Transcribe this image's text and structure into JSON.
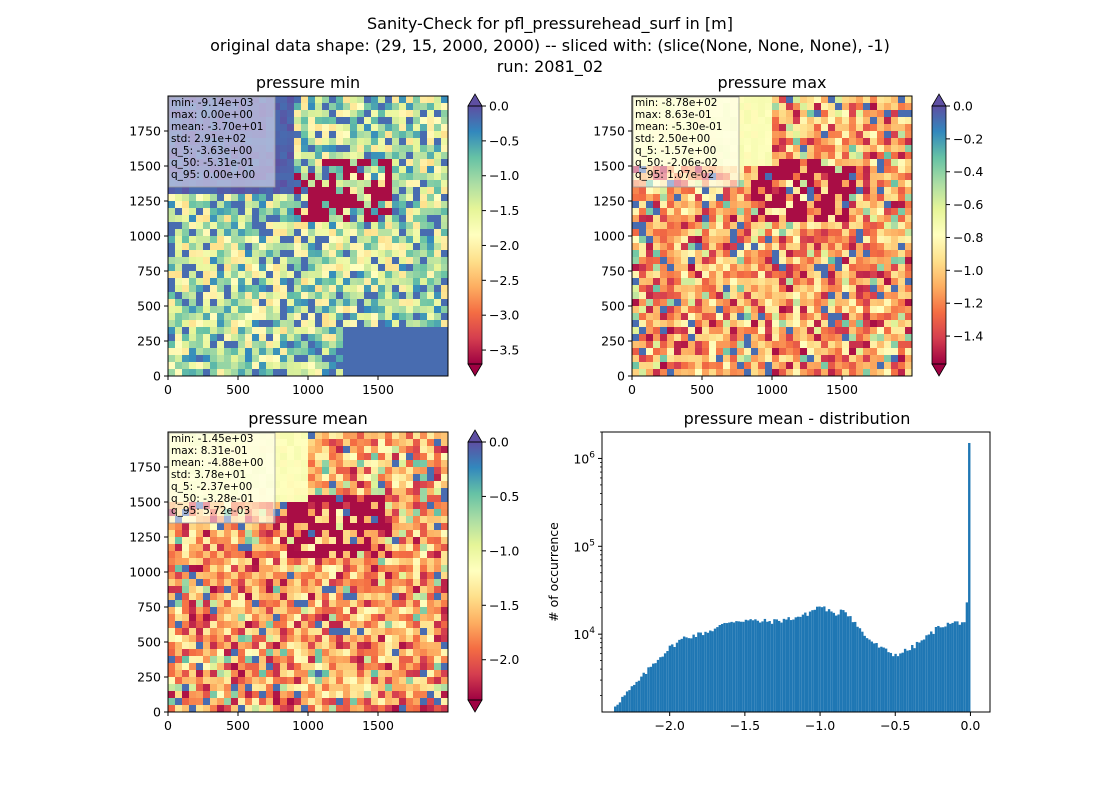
{
  "figure": {
    "title_lines": [
      "Sanity-Check for pfl_pressurehead_surf in [m]",
      "original data shape: (29, 15, 2000, 2000) -- sliced with: (slice(None, None, None), -1)",
      "run: 2081_02"
    ]
  },
  "colormap": {
    "name": "Spectral",
    "stops": [
      "#9e0142",
      "#d53e4f",
      "#f46d43",
      "#fdae61",
      "#fee08b",
      "#ffffbf",
      "#e6f598",
      "#abdda4",
      "#66c2a5",
      "#3288bd",
      "#5e4fa2"
    ],
    "over_color": "#5e4fa2",
    "under_color": "#9e0142"
  },
  "chart_data": [
    {
      "type": "heatmap",
      "title": "pressure min",
      "xlim": [
        0,
        2000
      ],
      "ylim": [
        0,
        2000
      ],
      "x_ticks": [
        "0",
        "500",
        "1000",
        "1500"
      ],
      "y_ticks": [
        "0",
        "250",
        "500",
        "750",
        "1000",
        "1250",
        "1500",
        "1750"
      ],
      "colorbar": {
        "range": [
          -3.7,
          0.0
        ],
        "ticks": [
          "0.0",
          "−0.5",
          "−1.0",
          "−1.5",
          "−2.0",
          "−2.5",
          "−3.0",
          "−3.5"
        ],
        "tick_values": [
          0.0,
          -0.5,
          -1.0,
          -1.5,
          -2.0,
          -2.5,
          -3.0,
          -3.5
        ],
        "extend_max": "both"
      },
      "stats": [
        "min: -9.14e+03",
        "max: 0.00e+00",
        "mean: -3.70e+01",
        "std: 2.91e+02",
        "q_5: -3.63e+00",
        "q_50: -5.31e-01",
        "q_95: 0.00e+00"
      ],
      "dominant": "mixed-blue"
    },
    {
      "type": "heatmap",
      "title": "pressure max",
      "xlim": [
        0,
        2000
      ],
      "ylim": [
        0,
        2000
      ],
      "x_ticks": [
        "0",
        "500",
        "1000",
        "1500"
      ],
      "y_ticks": [
        "0",
        "250",
        "500",
        "750",
        "1000",
        "1250",
        "1500",
        "1750"
      ],
      "colorbar": {
        "range": [
          -1.57,
          0.0
        ],
        "ticks": [
          "0.0",
          "−0.2",
          "−0.4",
          "−0.6",
          "−0.8",
          "−1.0",
          "−1.2",
          "−1.4"
        ],
        "tick_values": [
          0.0,
          -0.2,
          -0.4,
          -0.6,
          -0.8,
          -1.0,
          -1.2,
          -1.4
        ],
        "extend_max": "both"
      },
      "stats": [
        "min: -8.78e+02",
        "max: 8.63e-01",
        "mean: -5.30e-01",
        "std: 2.50e+00",
        "q_5: -1.57e+00",
        "q_50: -2.06e-02",
        "q_95: 1.07e-02"
      ],
      "dominant": "mixed-warm"
    },
    {
      "type": "heatmap",
      "title": "pressure mean",
      "xlim": [
        0,
        2000
      ],
      "ylim": [
        0,
        2000
      ],
      "x_ticks": [
        "0",
        "500",
        "1000",
        "1500"
      ],
      "y_ticks": [
        "0",
        "250",
        "500",
        "750",
        "1000",
        "1250",
        "1500",
        "1750"
      ],
      "colorbar": {
        "range": [
          -2.37,
          0.0
        ],
        "ticks": [
          "0.0",
          "−0.5",
          "−1.0",
          "−1.5",
          "−2.0"
        ],
        "tick_values": [
          0.0,
          -0.5,
          -1.0,
          -1.5,
          -2.0
        ],
        "extend_max": "both"
      },
      "stats": [
        "min: -1.45e+03",
        "max: 8.31e-01",
        "mean: -4.88e+00",
        "std: 3.78e+01",
        "q_5: -2.37e+00",
        "q_50: -3.28e-01",
        "q_95: 5.72e-03"
      ],
      "dominant": "mixed-warm"
    },
    {
      "type": "bar",
      "title": "pressure mean - distribution",
      "ylabel": "# of occurrence",
      "yscale": "log",
      "xlim": [
        -2.45,
        0.13
      ],
      "ylim": [
        1300,
        2000000
      ],
      "x_ticks": [
        "−2.0",
        "−1.5",
        "−1.0",
        "−0.5",
        "0.0"
      ],
      "x_tick_values": [
        -2.0,
        -1.5,
        -1.0,
        -0.5,
        0.0
      ],
      "y_ticks": [
        {
          "base": "10",
          "exp": "4",
          "value": 10000
        },
        {
          "base": "10",
          "exp": "5",
          "value": 100000
        },
        {
          "base": "10",
          "exp": "6",
          "value": 1000000
        }
      ],
      "color": "#1f77b4",
      "x_range": [
        -2.37,
        0.0
      ],
      "bin_count": 150,
      "profile": [
        [
          -2.37,
          1500
        ],
        [
          -2.3,
          2000
        ],
        [
          -2.2,
          3000
        ],
        [
          -2.1,
          4800
        ],
        [
          -2.0,
          7000
        ],
        [
          -1.9,
          9200
        ],
        [
          -1.8,
          10000
        ],
        [
          -1.7,
          11500
        ],
        [
          -1.6,
          14000
        ],
        [
          -1.5,
          14500
        ],
        [
          -1.4,
          14000
        ],
        [
          -1.3,
          14000
        ],
        [
          -1.2,
          15000
        ],
        [
          -1.1,
          16500
        ],
        [
          -1.0,
          21000
        ],
        [
          -0.95,
          19000
        ],
        [
          -0.9,
          16000
        ],
        [
          -0.85,
          20000
        ],
        [
          -0.8,
          16000
        ],
        [
          -0.7,
          9500
        ],
        [
          -0.6,
          7000
        ],
        [
          -0.5,
          5800
        ],
        [
          -0.4,
          6800
        ],
        [
          -0.3,
          9000
        ],
        [
          -0.2,
          12500
        ],
        [
          -0.1,
          13500
        ],
        [
          -0.02,
          14000
        ],
        [
          -0.01,
          23000
        ],
        [
          0.0,
          1500000
        ]
      ]
    }
  ]
}
